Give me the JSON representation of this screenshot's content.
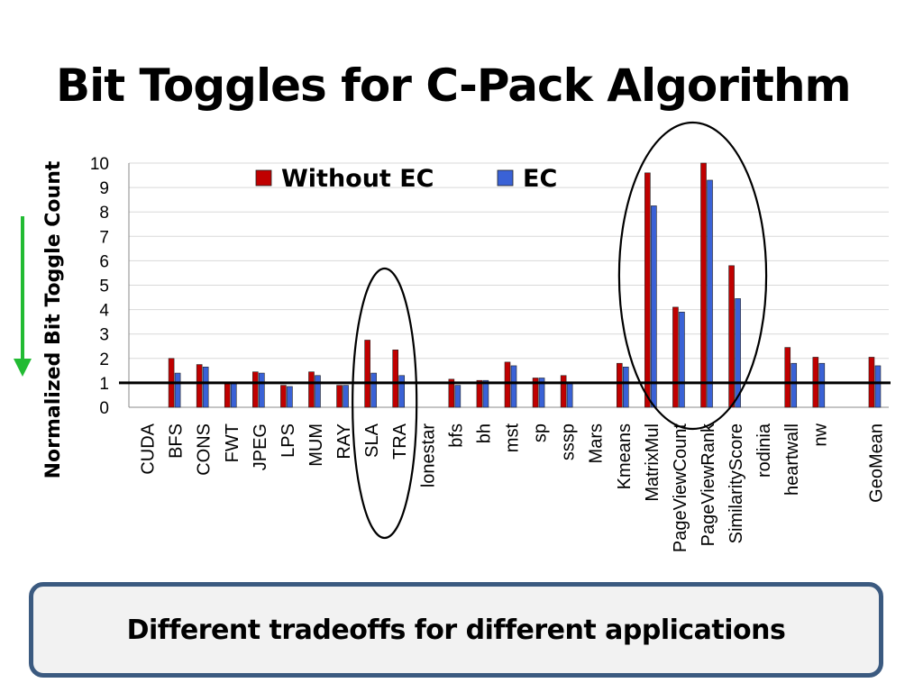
{
  "slide": {
    "title": "Bit Toggles for C-Pack Algorithm",
    "callout": "Different tradeoffs for different applications"
  },
  "chart_data": {
    "type": "bar",
    "title": "",
    "xlabel": "",
    "ylabel": "Normalized Bit Toggle Count",
    "ylim": [
      0,
      10
    ],
    "yticks": [
      0,
      1,
      2,
      3,
      4,
      5,
      6,
      7,
      8,
      9,
      10
    ],
    "grid": true,
    "legend_position": "top",
    "baseline_value": 1,
    "categories": [
      "CUDA",
      "BFS",
      "CONS",
      "FWT",
      "JPEG",
      "LPS",
      "MUM",
      "RAY",
      "SLA",
      "TRA",
      "lonestar",
      "bfs",
      "bh",
      "mst",
      "sp",
      "sssp",
      "Mars",
      "Kmeans",
      "MatrixMul",
      "PageViewCount",
      "PageViewRank",
      "SimilarityScore",
      "rodinia",
      "heartwall",
      "nw",
      "",
      "GeoMean"
    ],
    "series": [
      {
        "name": "Without EC",
        "color": "#c00000",
        "values": [
          null,
          2.0,
          1.75,
          1.0,
          1.45,
          0.9,
          1.45,
          0.9,
          2.75,
          2.35,
          null,
          1.15,
          1.1,
          1.85,
          1.2,
          1.3,
          null,
          1.8,
          9.6,
          4.1,
          10.0,
          5.8,
          null,
          2.45,
          2.05,
          null,
          2.05
        ]
      },
      {
        "name": "EC",
        "color": "#3a62d6",
        "values": [
          null,
          1.4,
          1.65,
          1.0,
          1.4,
          0.85,
          1.3,
          0.9,
          1.4,
          1.3,
          null,
          0.9,
          1.1,
          1.7,
          1.2,
          1.0,
          null,
          1.65,
          8.25,
          3.9,
          9.3,
          4.45,
          null,
          1.8,
          1.8,
          null,
          1.7
        ]
      }
    ],
    "highlighted_groups": [
      [
        "SLA",
        "TRA"
      ],
      [
        "MatrixMul",
        "PageViewCount",
        "PageViewRank",
        "SimilarityScore"
      ]
    ],
    "trend_arrow": {
      "direction": "down",
      "color": "#22bb33"
    }
  }
}
